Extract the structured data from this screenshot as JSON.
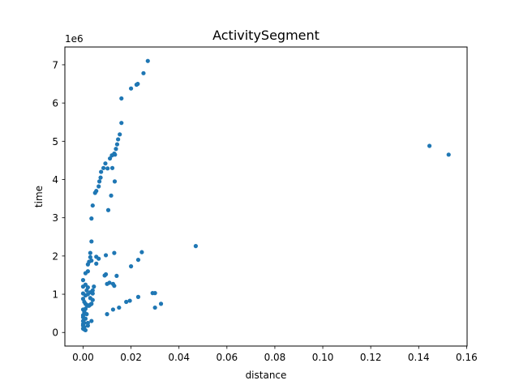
{
  "chart_data": {
    "type": "scatter",
    "title": "ActivitySegment",
    "xlabel": "distance",
    "ylabel": "time",
    "y_offset_text": "1e6",
    "xlim": [
      -0.0076,
      0.1602
    ],
    "ylim": [
      -0.355,
      7.465
    ],
    "xticks": [
      0.0,
      0.02,
      0.04,
      0.06,
      0.08,
      0.1,
      0.12,
      0.14,
      0.16
    ],
    "xtick_labels": [
      "0.00",
      "0.02",
      "0.04",
      "0.06",
      "0.08",
      "0.10",
      "0.12",
      "0.14",
      "0.16"
    ],
    "yticks": [
      0,
      1,
      2,
      3,
      4,
      5,
      6,
      7
    ],
    "ytick_labels": [
      "0",
      "1",
      "2",
      "3",
      "4",
      "5",
      "6",
      "7"
    ],
    "grid": false,
    "marker_color": "#1f77b4",
    "series": [
      {
        "x": [
          0.027,
          0.0252,
          0.0228,
          0.0223,
          0.02,
          0.016,
          0.016,
          0.0153,
          0.0146,
          0.0142,
          0.0137,
          0.013,
          0.0133,
          0.012,
          0.0112,
          0.0102,
          0.0093,
          0.0085,
          0.0075,
          0.0073,
          0.0068,
          0.0065,
          0.0055,
          0.005,
          0.0122,
          0.0132,
          0.0117,
          0.0105,
          0.004,
          0.0035,
          0.1445,
          0.1525,
          0.047,
          0.0035,
          0.003,
          0.003,
          0.0055,
          0.0065,
          0.0035,
          0.002,
          0.0025,
          0.0055,
          0.0095,
          0.013,
          0.0245,
          0.023,
          0.02,
          0.009,
          0.0095,
          0.014,
          0.011,
          0.0125,
          0.013,
          0.01,
          0.002,
          0.001,
          0.0,
          0.0,
          0.0045,
          0.001,
          0.0015,
          0.002,
          0.003,
          0.004,
          0.004,
          0.002,
          0.0,
          0.001,
          0.029,
          0.03,
          0.023,
          0.018,
          0.0195,
          0.0325,
          0.03,
          0.015,
          0.0125,
          0.01,
          0.0,
          0.0005,
          0.001,
          0.0015,
          0.002,
          0.003,
          0.0035,
          0.004,
          0.003,
          0.0025,
          0.001,
          0.0,
          0.0005,
          0.0015,
          0.0005,
          0.0,
          0.0,
          0.001,
          0.0,
          0.0005,
          0.0,
          0.0,
          0.0005,
          0.0,
          0.0005,
          0.001,
          0.002,
          0.0035,
          0.002
        ],
        "y": [
          7.1,
          6.78,
          6.5,
          6.48,
          6.38,
          6.12,
          5.48,
          5.18,
          5.05,
          4.92,
          4.8,
          4.68,
          4.65,
          4.63,
          4.55,
          4.29,
          4.42,
          4.3,
          4.2,
          4.05,
          3.95,
          3.82,
          3.7,
          3.65,
          4.3,
          3.95,
          3.58,
          3.2,
          3.32,
          2.98,
          4.88,
          4.65,
          2.26,
          2.38,
          2.08,
          1.97,
          1.98,
          1.93,
          1.88,
          1.78,
          1.85,
          1.8,
          2.02,
          2.08,
          2.1,
          1.9,
          1.73,
          1.49,
          1.52,
          1.48,
          1.3,
          1.27,
          1.22,
          1.27,
          1.6,
          1.55,
          1.37,
          1.2,
          1.2,
          1.25,
          1.1,
          1.18,
          1.05,
          1.1,
          1.02,
          1.0,
          1.02,
          0.97,
          1.03,
          1.03,
          0.93,
          0.8,
          0.83,
          0.75,
          0.65,
          0.65,
          0.6,
          0.48,
          0.88,
          0.8,
          0.75,
          0.72,
          0.7,
          0.73,
          0.75,
          0.85,
          0.9,
          0.7,
          0.62,
          0.6,
          0.55,
          0.48,
          0.52,
          0.45,
          0.4,
          0.36,
          0.3,
          0.25,
          0.22,
          0.18,
          0.14,
          0.1,
          0.08,
          0.06,
          0.25,
          0.3,
          0.18
        ]
      }
    ]
  }
}
